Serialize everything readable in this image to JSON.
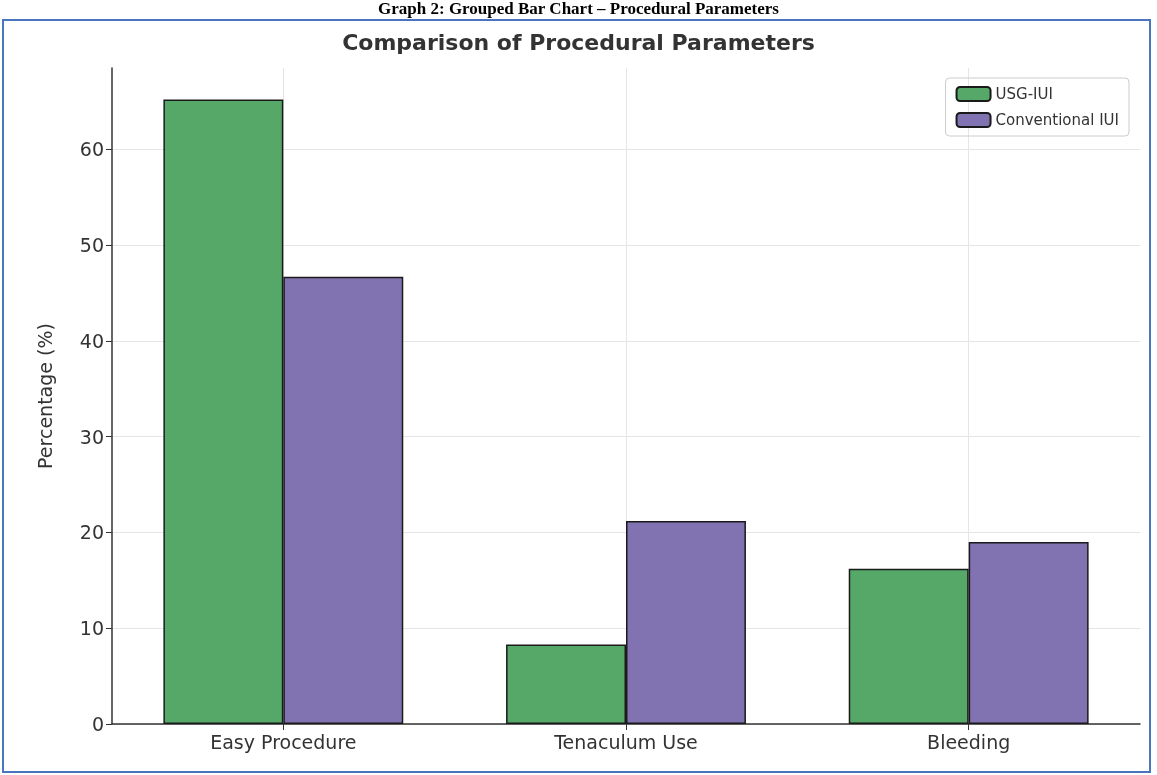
{
  "chart_data": {
    "type": "bar",
    "title": "Graph 2: Grouped Bar Chart – Procedural Parameters",
    "subtitle": "Comparison of Procedural Parameters",
    "ylabel": "Percentage (%)",
    "categories": [
      "Easy Procedure",
      "Tenaculum Use",
      "Bleeding"
    ],
    "series": [
      {
        "name": "USG-IUI",
        "color": "#55a868",
        "values": [
          65.2,
          8.3,
          16.2
        ]
      },
      {
        "name": "Conventional IUI",
        "color": "#8172b2",
        "values": [
          46.7,
          21.2,
          19.0
        ]
      }
    ],
    "ylim": [
      0,
      68.5
    ],
    "yticks": [
      0,
      10,
      20,
      30,
      40,
      50,
      60
    ],
    "grid": true,
    "legend": "top right"
  }
}
